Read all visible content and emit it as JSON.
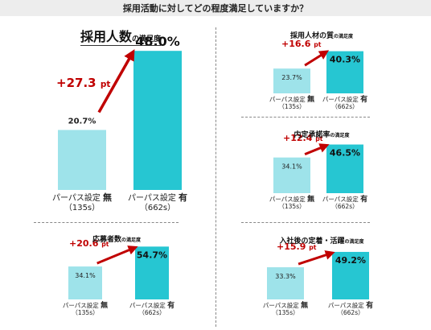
{
  "header": {
    "title": "採用活動に対してどの程度満足していますか？"
  },
  "categories": {
    "without": {
      "label": "パーパス設定",
      "mark": "無",
      "n": "（135s）"
    },
    "with": {
      "label": "パーパス設定",
      "mark": "有",
      "n": "（662s）"
    }
  },
  "colors": {
    "without": "#9ee3ea",
    "with": "#26c6d2",
    "arrow": "#c00000",
    "diff_text": "#c00000"
  },
  "chart_data": [
    {
      "type": "bar",
      "title": "採用人数",
      "title_suffix": "の満足度",
      "categories": [
        "パーパス設定 無",
        "パーパス設定 有"
      ],
      "values": [
        20.7,
        48.0
      ],
      "value_labels": [
        "20.7%",
        "48.0%"
      ],
      "diff_label": "+27.3 pt",
      "ylim": [
        0,
        50
      ]
    },
    {
      "type": "bar",
      "title": "採用人材の質",
      "title_suffix": "の満足度",
      "categories": [
        "パーパス設定 無",
        "パーパス設定 有"
      ],
      "values": [
        23.7,
        40.3
      ],
      "value_labels": [
        "23.7%",
        "40.3%"
      ],
      "diff_label": "+16.6 pt",
      "ylim": [
        0,
        50
      ]
    },
    {
      "type": "bar",
      "title": "内定承諾率",
      "title_suffix": "の満足度",
      "categories": [
        "パーパス設定 無",
        "パーパス設定 有"
      ],
      "values": [
        34.1,
        46.5
      ],
      "value_labels": [
        "34.1%",
        "46.5%"
      ],
      "diff_label": "+12.4 pt",
      "ylim": [
        0,
        50
      ]
    },
    {
      "type": "bar",
      "title": "応募者数",
      "title_suffix": "の満足度",
      "categories": [
        "パーパス設定 無",
        "パーパス設定 有"
      ],
      "values": [
        34.1,
        54.7
      ],
      "value_labels": [
        "34.1%",
        "54.7%"
      ],
      "diff_label": "+20.6 pt",
      "ylim": [
        0,
        60
      ]
    },
    {
      "type": "bar",
      "title": "入社後の定着・活躍",
      "title_suffix": "の満足度",
      "categories": [
        "パーパス設定 無",
        "パーパス設定 有"
      ],
      "values": [
        33.3,
        49.2
      ],
      "value_labels": [
        "33.3%",
        "49.2%"
      ],
      "diff_label": "+15.9 pt",
      "ylim": [
        0,
        55
      ]
    }
  ]
}
